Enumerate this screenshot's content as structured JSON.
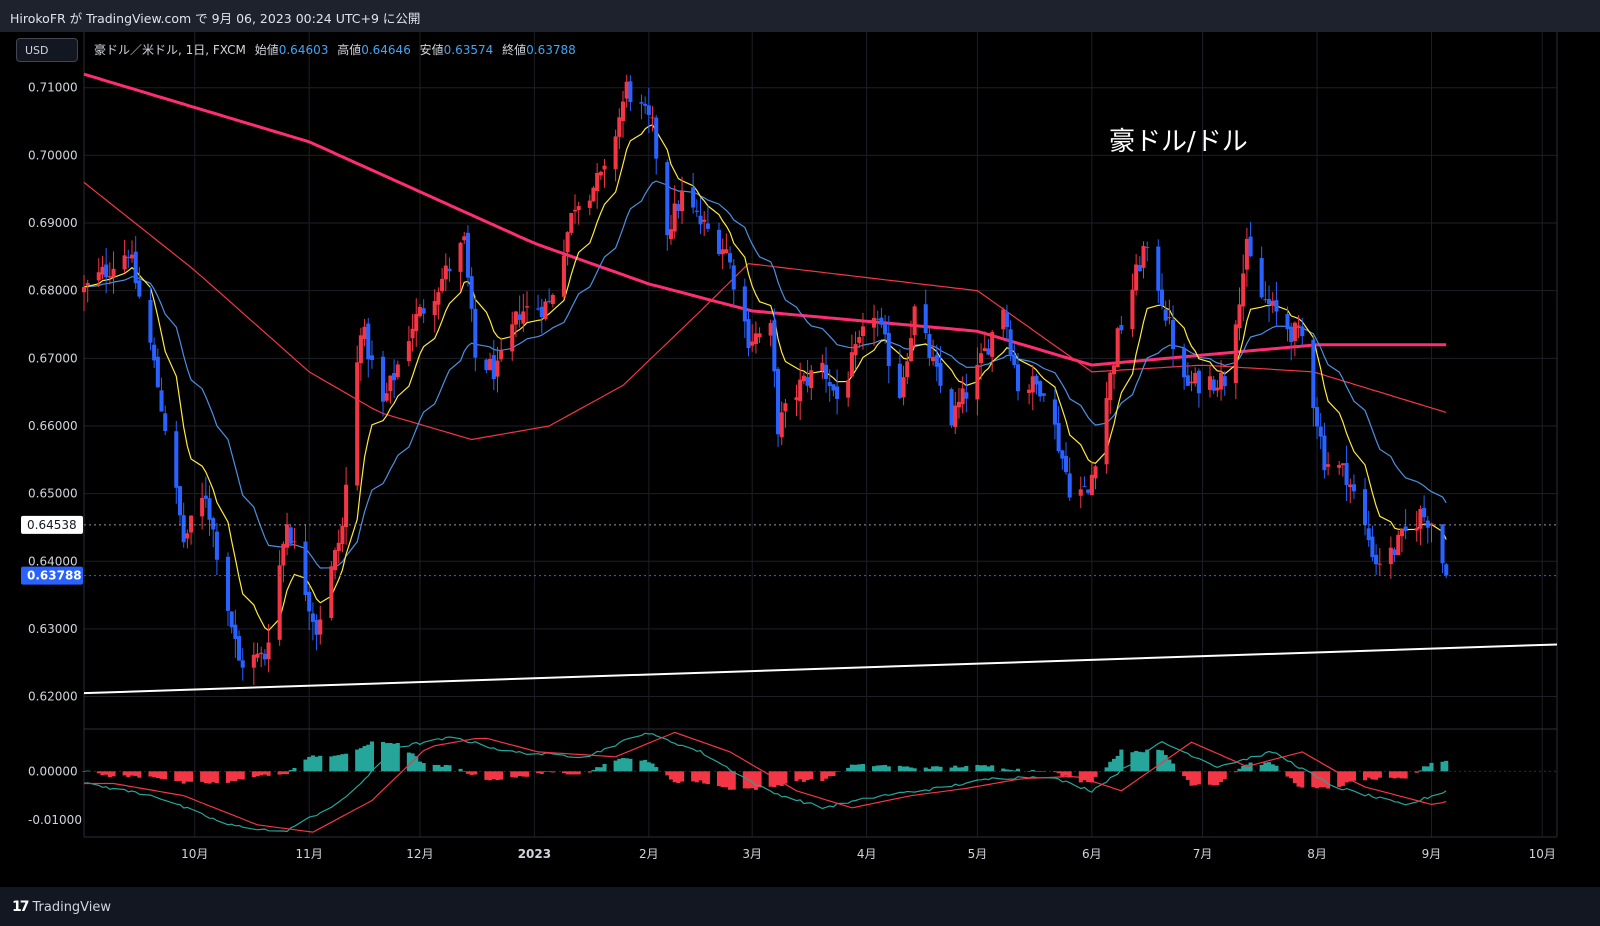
{
  "header": {
    "published_text": "HirokoFR が TradingView.com で 9月 06, 2023 00:24 UTC+9 に公開"
  },
  "toolbar": {
    "currency_button": "USD"
  },
  "legend": {
    "symbol": "豪ドル／米ドル, 1日, FXCM",
    "open_label": "始値",
    "open": "0.64603",
    "high_label": "高値",
    "high": "0.64646",
    "low_label": "安値",
    "low": "0.63574",
    "close_label": "終値",
    "close": "0.63788"
  },
  "annotation_title": "豪ドル/ドル",
  "price_badges": {
    "crosshair": "0.64538",
    "last": "0.63788",
    "crosshair_value": 0.64538,
    "last_value": 0.63788
  },
  "footer": {
    "brand": "TradingView"
  },
  "colors": {
    "background": "#000000",
    "up": "#f23645",
    "down": "#2962ff",
    "ema_fast": "#ffeb3b",
    "ema_mid": "#4a90e2",
    "ema_slow": "#f23645",
    "ma_long": "#ff2d73",
    "trendline": "#ffffff",
    "macd_line": "#26a69a",
    "signal_line": "#f23645",
    "hist_pos": "#26a69a",
    "hist_neg": "#f23645"
  },
  "chart_data": {
    "type": "candlestick",
    "symbol": "AUD/USD",
    "timeframe": "1日",
    "y_axis": {
      "ticks": [
        "0.71000",
        "0.70000",
        "0.69000",
        "0.68000",
        "0.67000",
        "0.66000",
        "0.65000",
        "0.64000",
        "0.63000",
        "0.62000"
      ],
      "tick_values": [
        0.71,
        0.7,
        0.69,
        0.68,
        0.67,
        0.66,
        0.65,
        0.64,
        0.63,
        0.62
      ],
      "range": [
        0.6155,
        0.7175
      ]
    },
    "x_axis": {
      "labels": [
        "10月",
        "11月",
        "12月",
        "2023",
        "2月",
        "3月",
        "4月",
        "5月",
        "6月",
        "7月",
        "8月",
        "9月",
        "10月"
      ],
      "label_dates": [
        "2022-10-01",
        "2022-11-01",
        "2022-12-01",
        "2023-01-01",
        "2023-02-01",
        "2023-03-01",
        "2023-04-01",
        "2023-05-01",
        "2023-06-01",
        "2023-07-01",
        "2023-08-01",
        "2023-09-01",
        "2023-10-01"
      ],
      "range": [
        "2022-09-01",
        "2023-10-05"
      ]
    },
    "price_anchors": [
      [
        "2022-09-01",
        0.68
      ],
      [
        "2022-09-09",
        0.684
      ],
      [
        "2022-09-13",
        0.686
      ],
      [
        "2022-09-19",
        0.672
      ],
      [
        "2022-09-23",
        0.66
      ],
      [
        "2022-09-28",
        0.643
      ],
      [
        "2022-10-04",
        0.65
      ],
      [
        "2022-10-13",
        0.625
      ],
      [
        "2022-10-20",
        0.626
      ],
      [
        "2022-10-26",
        0.646
      ],
      [
        "2022-11-03",
        0.63
      ],
      [
        "2022-11-10",
        0.645
      ],
      [
        "2022-11-15",
        0.675
      ],
      [
        "2022-11-21",
        0.663
      ],
      [
        "2022-11-29",
        0.675
      ],
      [
        "2022-12-05",
        0.68
      ],
      [
        "2022-12-13",
        0.687
      ],
      [
        "2022-12-16",
        0.67
      ],
      [
        "2022-12-22",
        0.668
      ],
      [
        "2022-12-28",
        0.677
      ],
      [
        "2023-01-05",
        0.678
      ],
      [
        "2023-01-12",
        0.693
      ],
      [
        "2023-01-20",
        0.697
      ],
      [
        "2023-01-26",
        0.71
      ],
      [
        "2023-02-02",
        0.704
      ],
      [
        "2023-02-06",
        0.689
      ],
      [
        "2023-02-10",
        0.694
      ],
      [
        "2023-02-15",
        0.69
      ],
      [
        "2023-02-22",
        0.686
      ],
      [
        "2023-02-28",
        0.673
      ],
      [
        "2023-03-06",
        0.674
      ],
      [
        "2023-03-08",
        0.66
      ],
      [
        "2023-03-14",
        0.666
      ],
      [
        "2023-03-20",
        0.669
      ],
      [
        "2023-03-24",
        0.664
      ],
      [
        "2023-04-03",
        0.677
      ],
      [
        "2023-04-10",
        0.665
      ],
      [
        "2023-04-14",
        0.677
      ],
      [
        "2023-04-24",
        0.661
      ],
      [
        "2023-05-01",
        0.668
      ],
      [
        "2023-05-08",
        0.678
      ],
      [
        "2023-05-12",
        0.666
      ],
      [
        "2023-05-19",
        0.666
      ],
      [
        "2023-05-26",
        0.651
      ],
      [
        "2023-05-31",
        0.65
      ],
      [
        "2023-06-08",
        0.673
      ],
      [
        "2023-06-15",
        0.686
      ],
      [
        "2023-06-19",
        0.681
      ],
      [
        "2023-06-26",
        0.666
      ],
      [
        "2023-07-05",
        0.667
      ],
      [
        "2023-07-07",
        0.667
      ],
      [
        "2023-07-13",
        0.686
      ],
      [
        "2023-07-17",
        0.679
      ],
      [
        "2023-07-25",
        0.674
      ],
      [
        "2023-07-28",
        0.673
      ],
      [
        "2023-08-03",
        0.655
      ],
      [
        "2023-08-09",
        0.653
      ],
      [
        "2023-08-17",
        0.64
      ],
      [
        "2023-08-21",
        0.641
      ],
      [
        "2023-08-29",
        0.647
      ],
      [
        "2023-09-01",
        0.646
      ],
      [
        "2023-09-05",
        0.6379
      ]
    ],
    "indicators": {
      "ma_long_anchors": [
        [
          "2022-09-01",
          0.712
        ],
        [
          "2022-11-01",
          0.702
        ],
        [
          "2023-01-01",
          0.687
        ],
        [
          "2023-02-01",
          0.681
        ],
        [
          "2023-03-01",
          0.677
        ],
        [
          "2023-05-01",
          0.674
        ],
        [
          "2023-06-01",
          0.669
        ],
        [
          "2023-08-01",
          0.672
        ],
        [
          "2023-09-05",
          0.672
        ]
      ],
      "ema_slow_anchors": [
        [
          "2022-09-01",
          0.696
        ],
        [
          "2022-10-01",
          0.683
        ],
        [
          "2022-11-01",
          0.668
        ],
        [
          "2022-11-20",
          0.662
        ],
        [
          "2022-12-15",
          0.658
        ],
        [
          "2023-01-05",
          0.66
        ],
        [
          "2023-01-25",
          0.666
        ],
        [
          "2023-02-15",
          0.677
        ],
        [
          "2023-02-28",
          0.684
        ],
        [
          "2023-03-31",
          0.682
        ],
        [
          "2023-05-01",
          0.68
        ],
        [
          "2023-06-01",
          0.668
        ],
        [
          "2023-07-01",
          0.669
        ],
        [
          "2023-07-31",
          0.668
        ],
        [
          "2023-09-05",
          0.662
        ]
      ]
    },
    "trendline": {
      "start": [
        "2022-09-01",
        0.6205
      ],
      "end": [
        "2023-10-05",
        0.6277
      ]
    },
    "macd_panel": {
      "ticks": [
        "0.00000",
        "-0.01000"
      ],
      "tick_values": [
        0.0,
        -0.01
      ],
      "range": [
        -0.0135,
        0.0085
      ],
      "macd_anchors": [
        [
          "2022-09-01",
          -0.0025
        ],
        [
          "2022-09-20",
          -0.005
        ],
        [
          "2022-10-10",
          -0.011
        ],
        [
          "2022-10-25",
          -0.0125
        ],
        [
          "2022-11-10",
          -0.006
        ],
        [
          "2022-11-25",
          0.005
        ],
        [
          "2022-12-10",
          0.007
        ],
        [
          "2022-12-25",
          0.004
        ],
        [
          "2023-01-15",
          0.003
        ],
        [
          "2023-01-31",
          0.008
        ],
        [
          "2023-02-15",
          0.004
        ],
        [
          "2023-03-05",
          -0.004
        ],
        [
          "2023-03-20",
          -0.0075
        ],
        [
          "2023-04-05",
          -0.005
        ],
        [
          "2023-04-20",
          -0.0035
        ],
        [
          "2023-05-05",
          -0.0015
        ],
        [
          "2023-05-20",
          -0.001
        ],
        [
          "2023-06-01",
          -0.004
        ],
        [
          "2023-06-20",
          0.006
        ],
        [
          "2023-07-05",
          0.001
        ],
        [
          "2023-07-20",
          0.004
        ],
        [
          "2023-08-05",
          -0.003
        ],
        [
          "2023-08-25",
          -0.007
        ],
        [
          "2023-09-05",
          -0.004
        ]
      ],
      "hist_bias": 0.0,
      "signal_lag_days": 8
    }
  }
}
